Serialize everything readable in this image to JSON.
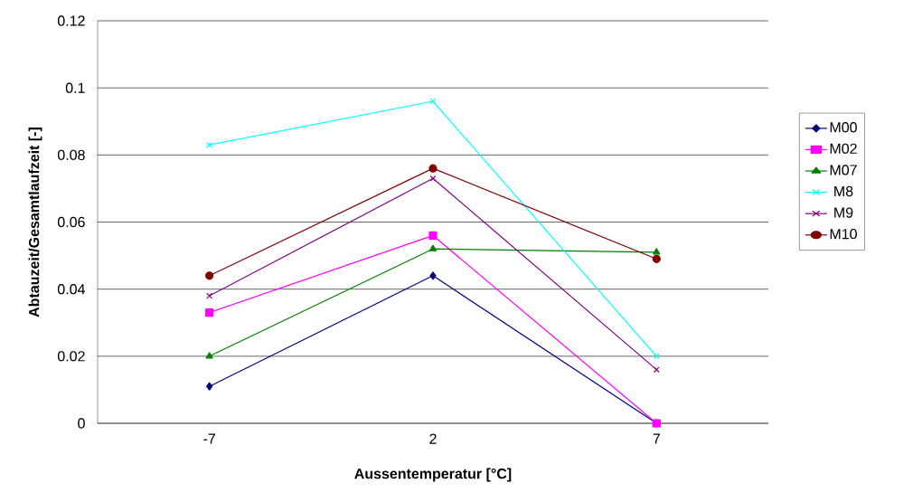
{
  "chart_data": {
    "type": "line",
    "xlabel": "Aussentemperatur [°C]",
    "ylabel": "Abtauzeit/Gesamtlaufzeit [-]",
    "categories": [
      "-7",
      "2",
      "7"
    ],
    "ylim": [
      0,
      0.12
    ],
    "yticks": [
      0,
      0.02,
      0.04,
      0.06,
      0.08,
      {
        "value": 0.1,
        "label": "0.1"
      },
      0.12
    ],
    "grid": "y",
    "legend": "right",
    "line_style": "solid",
    "series": [
      {
        "name": "M00",
        "color": "#000080",
        "marker": "diamond",
        "values": [
          0.011,
          0.044,
          0
        ]
      },
      {
        "name": "M02",
        "color": "#ff00ff",
        "marker": "square",
        "values": [
          0.033,
          0.056,
          0
        ]
      },
      {
        "name": "M07",
        "color": "#008000",
        "marker": "triangle",
        "values": [
          0.02,
          0.052,
          0.051
        ]
      },
      {
        "name": "M8",
        "color": "#00ffff",
        "marker": "cross",
        "values": [
          0.083,
          0.096,
          0.02
        ]
      },
      {
        "name": "M9",
        "color": "#800080",
        "marker": "cross",
        "values": [
          0.038,
          0.073,
          0.016
        ]
      },
      {
        "name": "M10",
        "color": "#800000",
        "marker": "circle",
        "values": [
          0.044,
          0.076,
          0.049
        ]
      }
    ]
  }
}
